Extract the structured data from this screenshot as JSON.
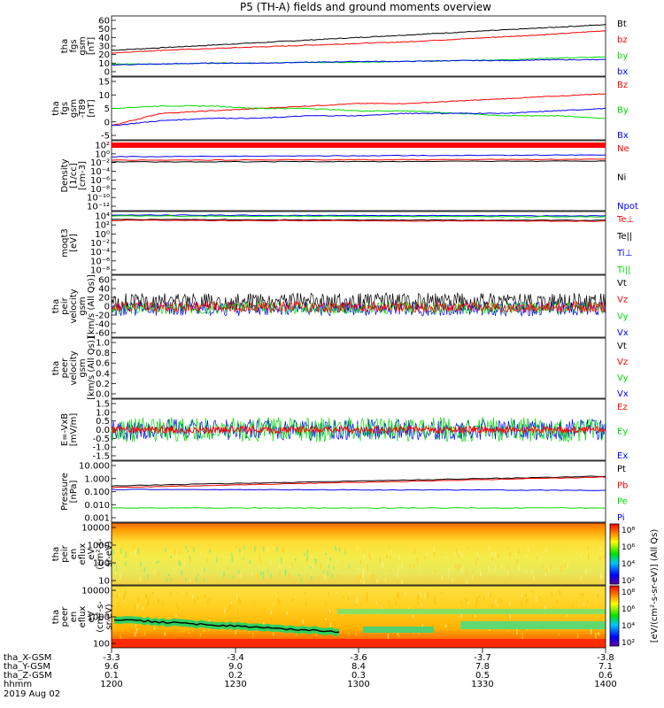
{
  "title": "P5 (TH-A) fields and ground moments overview",
  "colors": {
    "black": "#000000",
    "red": "#ff0000",
    "green": "#00dd00",
    "blue": "#0000ff"
  },
  "chart_data": [
    {
      "type": "line",
      "id": "p1",
      "ylabel": [
        "tha",
        "fgs",
        "gsm",
        "[nT]"
      ],
      "yticks": [
        "60",
        "50",
        "40",
        "30",
        "20",
        "10",
        "0"
      ],
      "ylim": [
        0,
        60
      ],
      "series": [
        {
          "name": "Bt",
          "color": "#000000",
          "y": [
            25,
            28,
            31,
            34,
            37,
            40,
            43,
            46,
            49,
            52,
            55
          ]
        },
        {
          "name": "bz",
          "color": "#ff0000",
          "y": [
            22,
            25,
            27,
            29,
            31,
            33,
            35,
            38,
            41,
            44,
            48
          ]
        },
        {
          "name": "by",
          "color": "#00dd00",
          "y": [
            9,
            9,
            10,
            10,
            11,
            11,
            12,
            13,
            14,
            16,
            17
          ]
        },
        {
          "name": "bx",
          "color": "#0000ff",
          "y": [
            8,
            9,
            10,
            10,
            11,
            12,
            12,
            13,
            13,
            14,
            14
          ]
        }
      ]
    },
    {
      "type": "line",
      "id": "p2",
      "ylabel": [
        "tha",
        "fgs",
        "gsm",
        "-T89",
        "[nT]"
      ],
      "yticks": [
        "15",
        "10",
        "5",
        "0",
        "-5"
      ],
      "ylim": [
        -7,
        15
      ],
      "series": [
        {
          "name": "Bz",
          "color": "#ff0000",
          "y": [
            -3,
            2,
            3,
            4,
            5,
            6,
            6,
            7,
            8,
            9,
            10
          ]
        },
        {
          "name": "By",
          "color": "#00dd00",
          "y": [
            4,
            5,
            5,
            4,
            4,
            3,
            3,
            2,
            1,
            1,
            0
          ]
        },
        {
          "name": "Bx",
          "color": "#0000ff",
          "y": [
            -3,
            -1,
            0,
            0,
            1,
            1,
            2,
            2,
            2,
            3,
            4
          ]
        }
      ]
    },
    {
      "type": "line",
      "id": "p3",
      "ylabel": [
        "Density",
        "[1/cc]",
        "[cm-3]"
      ],
      "yticks": [
        "10²",
        "10⁰",
        "10⁻²",
        "10⁻⁴",
        "10⁻⁶",
        "10⁻⁸",
        "10⁻¹⁰",
        "10⁻¹²"
      ],
      "series": [
        {
          "name": "Ne",
          "color": "#ff0000"
        },
        {
          "name": "Ni",
          "color": "#000000"
        },
        {
          "name": "Npot",
          "color": "#0000ff"
        }
      ]
    },
    {
      "type": "line",
      "id": "p4",
      "ylabel": [
        "moqt3",
        "[eV]"
      ],
      "yticks": [
        "10⁴",
        "10²",
        "10⁰",
        "10⁻²",
        "10⁻⁴",
        "10⁻⁶",
        "10⁻⁸"
      ],
      "series": [
        {
          "name": "Te⊥",
          "color": "#ff0000"
        },
        {
          "name": "Te||",
          "color": "#000000"
        },
        {
          "name": "Ti⊥",
          "color": "#0000ff"
        },
        {
          "name": "Ti||",
          "color": "#00dd00"
        }
      ]
    },
    {
      "type": "line",
      "id": "p5",
      "ylabel": [
        "tha",
        "peir",
        "velocity",
        "gsm",
        "[km/s (All Qs)]"
      ],
      "yticks": [
        "60",
        "40",
        "20",
        "0",
        "-20",
        "-40",
        "-60"
      ],
      "ylim": [
        -60,
        60
      ],
      "series": [
        {
          "name": "Vt",
          "color": "#000000"
        },
        {
          "name": "Vz",
          "color": "#ff0000"
        },
        {
          "name": "Vy",
          "color": "#00dd00"
        },
        {
          "name": "Vx",
          "color": "#0000ff"
        }
      ]
    },
    {
      "type": "line",
      "id": "p6",
      "ylabel": [
        "tha",
        "peer",
        "velocity",
        "gsm",
        "[km/s (All Qs)]"
      ],
      "yticks": [
        "1.0",
        "0.8",
        "0.6",
        "0.4",
        "0.2",
        "0.0"
      ],
      "series": [
        {
          "name": "Vt",
          "color": "#000000"
        },
        {
          "name": "Vz",
          "color": "#ff0000"
        },
        {
          "name": "Vy",
          "color": "#00dd00"
        },
        {
          "name": "Vx",
          "color": "#0000ff"
        }
      ]
    },
    {
      "type": "line",
      "id": "p7",
      "ylabel": [
        "E=-VxB",
        "[mV/m]"
      ],
      "yticks": [
        "1.5",
        "1.0",
        "0.5",
        "0.0",
        "-0.5",
        "-1.0",
        "-1.5"
      ],
      "ylim": [
        -1.5,
        1.5
      ],
      "series": [
        {
          "name": "Ez",
          "color": "#ff0000"
        },
        {
          "name": "Ey",
          "color": "#00dd00"
        },
        {
          "name": "Ex",
          "color": "#0000ff"
        }
      ]
    },
    {
      "type": "line",
      "id": "p8",
      "ylabel": [
        "Pressure",
        "[nPa]"
      ],
      "yticks": [
        "10.000",
        "1.000",
        "0.100",
        "0.010",
        "0.001"
      ],
      "series": [
        {
          "name": "Pt",
          "color": "#000000"
        },
        {
          "name": "Pb",
          "color": "#ff0000"
        },
        {
          "name": "Pe",
          "color": "#00dd00"
        },
        {
          "name": "Pi",
          "color": "#0000ff"
        }
      ]
    },
    {
      "type": "heatmap",
      "id": "p9",
      "ylabel": [
        "tha",
        "peir",
        "en",
        "eflux",
        "eV",
        "(cm²-s-",
        "sr-eV)"
      ],
      "yticks": [
        "10000",
        "1000",
        "100",
        "10"
      ]
    },
    {
      "type": "heatmap",
      "id": "p10",
      "ylabel": [
        "tha",
        "peer",
        "en",
        "eflux",
        "eV",
        "(cm²-s-",
        "sr-eV)"
      ],
      "yticks": [
        "10000",
        "1000",
        "100"
      ]
    }
  ],
  "colorbar": {
    "label": "[eV/(cm²-s-sr-eV)] (All Qs)",
    "ticks_top": [
      "10⁸",
      "10⁶",
      "10⁴",
      "10²"
    ],
    "ticks_bottom": [
      "10⁸",
      "10⁶",
      "10⁴",
      "10²"
    ]
  },
  "x_axis": {
    "rows": [
      {
        "label": "tha_X-GSM",
        "values": [
          "-3.3",
          "-3.4",
          "-3.6",
          "-3.7",
          "-3.8"
        ]
      },
      {
        "label": "tha_Y-GSM",
        "values": [
          "9.6",
          "9.0",
          "8.4",
          "7.8",
          "7.1"
        ]
      },
      {
        "label": "tha_Z-GSM",
        "values": [
          "0.1",
          "0.2",
          "0.3",
          "0.5",
          "0.6"
        ]
      },
      {
        "label": "hhmm",
        "values": [
          "1200",
          "1230",
          "1300",
          "1330",
          "1400"
        ]
      }
    ],
    "date": "2019 Aug 02"
  }
}
